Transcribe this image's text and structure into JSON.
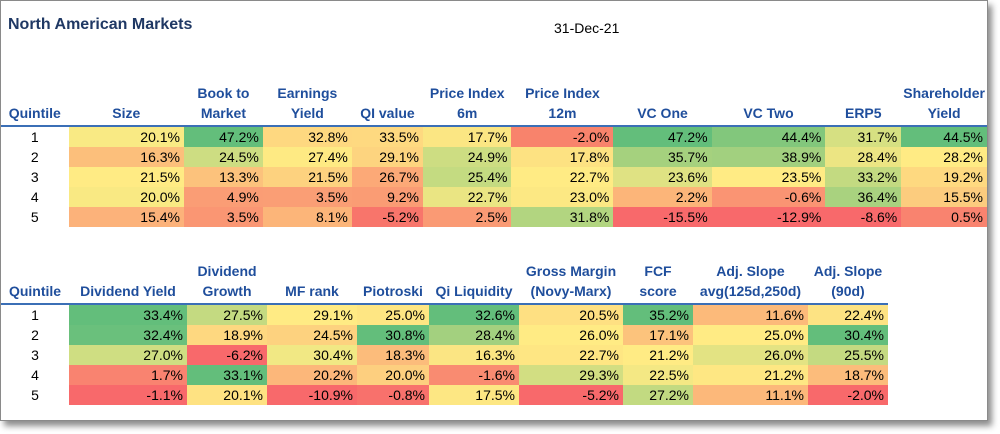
{
  "header": {
    "title": "North American Markets",
    "date": "31-Dec-21"
  },
  "table1": {
    "columns": [
      "Quintile",
      "Size",
      "Book to\nMarket",
      "Earnings\nYield",
      "QI value",
      "Price Index\n6m",
      "Price Index\n12m",
      "VC One",
      "VC Two",
      "ERP5",
      "Shareholder\nYield"
    ],
    "rows": [
      {
        "cells": [
          "1",
          "20.1%",
          "47.2%",
          "32.8%",
          "33.5%",
          "17.7%",
          "-2.0%",
          "47.2%",
          "44.4%",
          "31.7%",
          "44.5%"
        ],
        "colors": [
          "#ffffff",
          "#f9ea84",
          "#63be7b",
          "#fed880",
          "#fed980",
          "#fbe683",
          "#f8836c",
          "#63be7b",
          "#82c77c",
          "#d6e082",
          "#63be7b"
        ]
      },
      {
        "cells": [
          "2",
          "16.3%",
          "24.5%",
          "27.4%",
          "29.1%",
          "24.9%",
          "17.8%",
          "35.7%",
          "38.9%",
          "28.4%",
          "28.2%"
        ],
        "colors": [
          "#ffffff",
          "#fcbf7b",
          "#cddd82",
          "#feea83",
          "#fdd47f",
          "#cddd82",
          "#fde282",
          "#a5d17e",
          "#a2d07f",
          "#ece583",
          "#ffeb84"
        ]
      },
      {
        "cells": [
          "3",
          "21.5%",
          "13.3%",
          "21.5%",
          "26.7%",
          "25.4%",
          "22.7%",
          "23.6%",
          "23.5%",
          "33.2%",
          "19.2%"
        ],
        "colors": [
          "#ffffff",
          "#ffeb84",
          "#fcc27c",
          "#fdd27f",
          "#fca977",
          "#c4db81",
          "#ffeb84",
          "#dfe283",
          "#ffeb84",
          "#c3da81",
          "#fed980"
        ]
      },
      {
        "cells": [
          "4",
          "20.0%",
          "4.9%",
          "3.5%",
          "9.2%",
          "22.7%",
          "23.0%",
          "2.2%",
          "-0.6%",
          "36.4%",
          "15.5%"
        ],
        "colors": [
          "#ffffff",
          "#f9e983",
          "#fa9d75",
          "#fa9e75",
          "#fa9c74",
          "#eae583",
          "#fce883",
          "#fcb579",
          "#fa9473",
          "#a9d27f",
          "#fccc7e"
        ]
      },
      {
        "cells": [
          "5",
          "15.4%",
          "3.5%",
          "8.1%",
          "-5.2%",
          "2.5%",
          "31.8%",
          "-15.5%",
          "-12.9%",
          "-8.6%",
          "0.5%"
        ],
        "colors": [
          "#ffffff",
          "#fcb27a",
          "#fa9673",
          "#fcb579",
          "#f8756b",
          "#fa9a74",
          "#b2d580",
          "#f8696b",
          "#f8696b",
          "#f8696b",
          "#f9836f"
        ]
      }
    ]
  },
  "table2": {
    "columns": [
      "Quintile",
      "Dividend Yield",
      "Dividend\nGrowth",
      "MF rank",
      "Piotroski",
      "Qi Liquidity",
      "Gross Margin\n(Novy-Marx)",
      "FCF score",
      "Adj. Slope\navg(125d,250d)",
      "Adj. Slope\n(90d)"
    ],
    "rows": [
      {
        "cells": [
          "1",
          "33.4%",
          "27.5%",
          "29.1%",
          "25.0%",
          "32.6%",
          "20.5%",
          "35.2%",
          "11.6%",
          "22.4%"
        ],
        "colors": [
          "#ffffff",
          "#63be7b",
          "#c4da81",
          "#ffeb84",
          "#fee683",
          "#63be7b",
          "#fee082",
          "#63be7b",
          "#fcba7a",
          "#fde383"
        ]
      },
      {
        "cells": [
          "2",
          "32.4%",
          "18.9%",
          "24.5%",
          "30.8%",
          "28.4%",
          "26.0%",
          "17.1%",
          "25.0%",
          "30.4%"
        ],
        "colors": [
          "#ffffff",
          "#6ac07c",
          "#fed880",
          "#fdd27f",
          "#63be7b",
          "#a3d07f",
          "#ffeb84",
          "#fcc37c",
          "#ffeb84",
          "#63be7b"
        ]
      },
      {
        "cells": [
          "3",
          "27.0%",
          "-6.2%",
          "30.4%",
          "18.3%",
          "16.3%",
          "22.7%",
          "21.2%",
          "26.0%",
          "25.5%"
        ],
        "colors": [
          "#ffffff",
          "#cfde82",
          "#f8696b",
          "#f1e884",
          "#fcbc7b",
          "#fbe583",
          "#fee683",
          "#ffeb84",
          "#e3e383",
          "#c4da81"
        ]
      },
      {
        "cells": [
          "4",
          "1.7%",
          "33.1%",
          "20.2%",
          "20.0%",
          "-1.6%",
          "29.3%",
          "22.5%",
          "21.2%",
          "18.7%"
        ],
        "colors": [
          "#ffffff",
          "#f98370",
          "#63be7b",
          "#fcb77a",
          "#fdcf7f",
          "#f98b71",
          "#d2de82",
          "#f4e884",
          "#fee783",
          "#fcbc7b"
        ]
      },
      {
        "cells": [
          "5",
          "-1.1%",
          "20.1%",
          "-10.9%",
          "-0.8%",
          "17.5%",
          "-5.2%",
          "27.2%",
          "11.1%",
          "-2.0%"
        ],
        "colors": [
          "#ffffff",
          "#f8696b",
          "#fee282",
          "#f8696b",
          "#f8716c",
          "#fde783",
          "#f8696b",
          "#c2da81",
          "#fcb87a",
          "#f8696b"
        ]
      }
    ]
  }
}
